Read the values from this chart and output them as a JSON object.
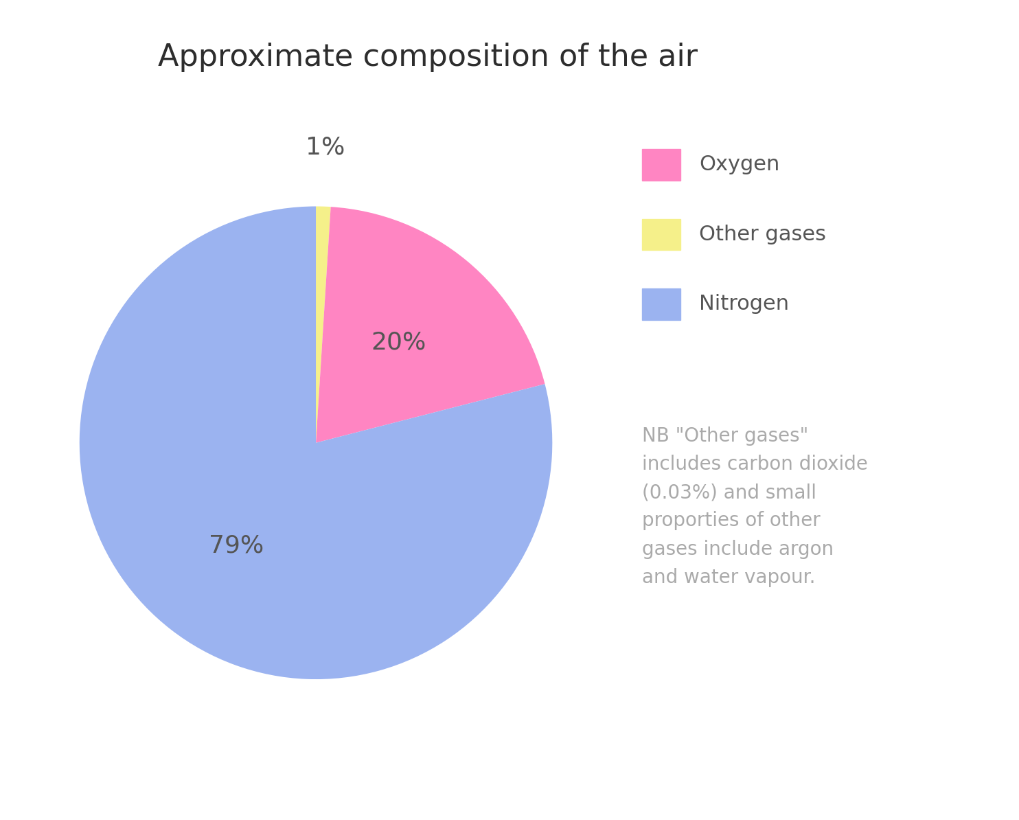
{
  "title": "Approximate composition of the air",
  "title_fontsize": 32,
  "title_color": "#2d2d2d",
  "slices": [
    1,
    20,
    79
  ],
  "labels": [
    "Other gases",
    "Oxygen",
    "Nitrogen"
  ],
  "colors": [
    "#f5f08a",
    "#ff85c2",
    "#9bb3f0"
  ],
  "autopct_labels": [
    "1%",
    "20%",
    "79%"
  ],
  "legend_labels": [
    "Oxygen",
    "Other gases",
    "Nitrogen"
  ],
  "legend_colors": [
    "#ff85c2",
    "#f5f08a",
    "#9bb3f0"
  ],
  "legend_fontsize": 22,
  "legend_text_color": "#555555",
  "autopct_fontsize": 26,
  "autopct_color": "#555555",
  "note_text": "NB \"Other gases\"\nincludes carbon dioxide\n(0.03%) and small\nproporties of other\ngases include argon\nand water vapour.",
  "note_color": "#aaaaaa",
  "note_fontsize": 20,
  "background_color": "#ffffff",
  "startangle": 90
}
